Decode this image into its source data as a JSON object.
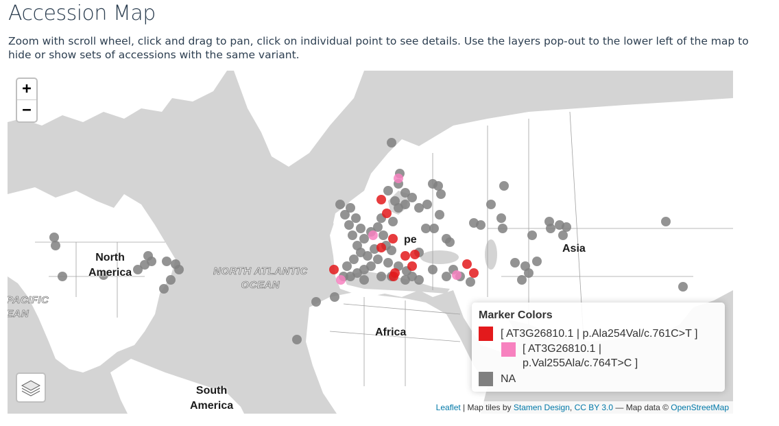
{
  "page": {
    "title": "Accession Map",
    "instructions": "Zoom with scroll wheel, click and drag to pan, click on individual point to see details. Use the layers pop-out to the lower left of the map to hide or show sets of accessions with the same variant."
  },
  "map": {
    "zoom_in_label": "+",
    "zoom_out_label": "−",
    "layers_icon": "layers-icon",
    "colors": {
      "land": "#ffffff",
      "water": "#d4d4d4",
      "border": "#9a9a9a"
    },
    "labels": {
      "north_america": "North\nAmerica",
      "south_america": "South\nAmerica",
      "africa": "Africa",
      "asia": "Asia",
      "europe_partial": "pe",
      "north_atlantic": "NORTH ATLANTIC\nOCEAN",
      "pacific": "PACIFIC\nEAN"
    }
  },
  "legend": {
    "title": "Marker Colors",
    "items": [
      {
        "label": "[ AT3G26810.1 | p.Ala254Val/c.761C>T ]",
        "color": "#e31a1c"
      },
      {
        "label_line1": "[ AT3G26810.1 |",
        "label_line2": "p.Val255Ala/c.764T>C ]",
        "color": "#f781bf"
      },
      {
        "label": "NA",
        "color": "#808080"
      }
    ]
  },
  "attribution": {
    "leaflet": "Leaflet",
    "sep1": " | Map tiles by ",
    "stamen": "Stamen Design",
    "comma": ", ",
    "license": "CC BY 3.0",
    "sep2": " — Map data © ",
    "osm": "OpenStreetMap"
  }
}
